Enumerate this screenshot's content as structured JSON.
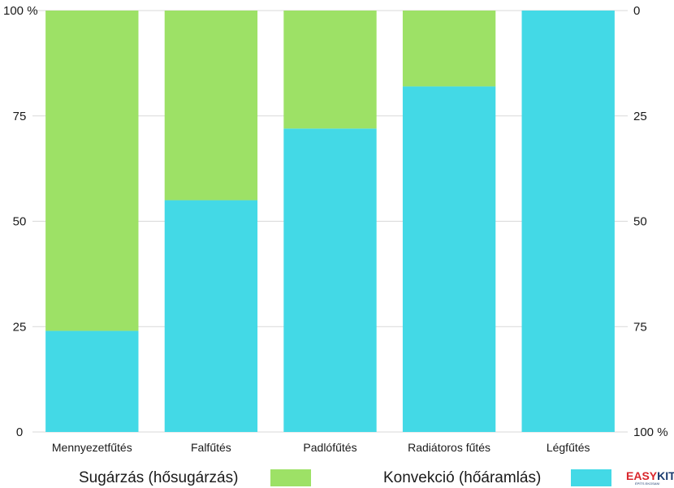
{
  "colors": {
    "radiation": "#9de166",
    "convection": "#43d9e6",
    "grid": "#d9d9d9",
    "logo_red": "#d9262c",
    "logo_blue": "#1a3a6e"
  },
  "legend": {
    "radiation_label": "Sugárzás (hősugárzás)",
    "convection_label": "Konvekció (hőáramlás)"
  },
  "logo": {
    "brand_part1": "EASY",
    "brand_part2": "KIT",
    "tagline": "ÉPÍTS EKOSAN!"
  },
  "chart_data": {
    "type": "bar",
    "stacked": true,
    "categories": [
      "Mennyezetfűtés",
      "Falfűtés",
      "Padlófűtés",
      "Radiátoros fűtés",
      "Légfűtés"
    ],
    "series": [
      {
        "name": "Konvekció (hőáramlás)",
        "values": [
          24,
          55,
          72,
          82,
          100
        ]
      },
      {
        "name": "Sugárzás (hősugárzás)",
        "values": [
          76,
          45,
          28,
          18,
          0
        ]
      }
    ],
    "ylim": [
      0,
      100
    ],
    "left_axis_ticks": [
      "0",
      "25",
      "50",
      "75",
      "100 %"
    ],
    "right_axis_ticks": [
      "100 %",
      "75",
      "50",
      "25",
      "0"
    ],
    "grid": true,
    "legend_position": "bottom"
  }
}
